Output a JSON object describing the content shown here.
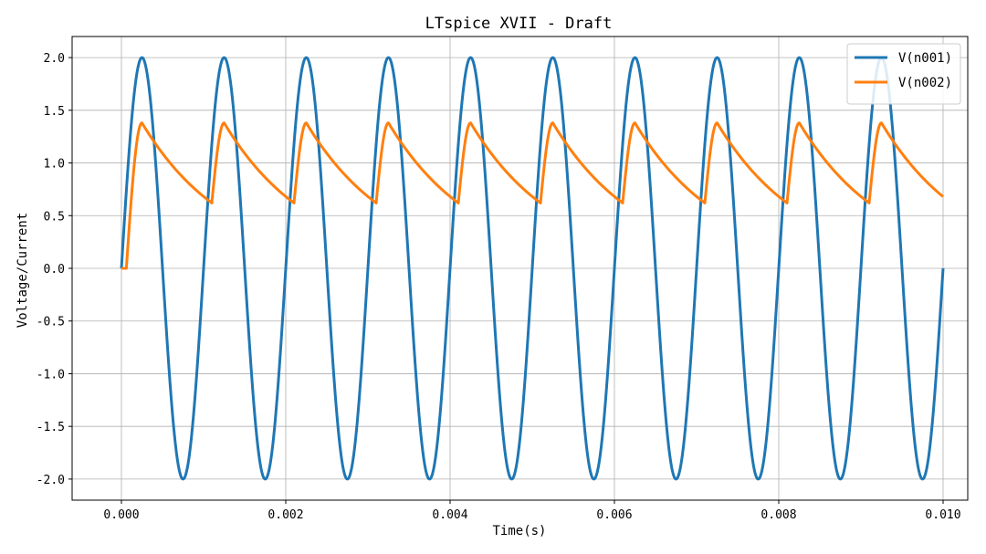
{
  "chart_data": {
    "type": "line",
    "title": "LTspice XVII - Draft",
    "xlabel": "Time(s)",
    "ylabel": "Voltage/Current",
    "xlim": [
      -0.0006,
      0.0103
    ],
    "ylim": [
      -2.2,
      2.2
    ],
    "xticks": [
      0.0,
      0.002,
      0.004,
      0.006,
      0.008,
      0.01
    ],
    "xtick_labels": [
      "0.000",
      "0.002",
      "0.004",
      "0.006",
      "0.008",
      "0.010"
    ],
    "yticks": [
      2.0,
      1.5,
      1.0,
      0.5,
      0.0,
      -0.5,
      -1.0,
      -1.5,
      -2.0
    ],
    "ytick_labels": [
      "2.0",
      "1.5",
      "1.0",
      "0.5",
      "0.0",
      "-0.5",
      "-1.0",
      "-1.5",
      "-2.0"
    ],
    "grid": true,
    "legend_position": "top-right",
    "series": [
      {
        "name": "V(n001)",
        "color": "#1f77b4",
        "x": [
          0.0,
          0.00025,
          0.0005,
          0.00075,
          0.001,
          0.00125,
          0.0015,
          0.00175,
          0.002,
          0.00225,
          0.0025,
          0.00275,
          0.003,
          0.00325,
          0.0035,
          0.00375,
          0.004,
          0.00425,
          0.0045,
          0.00475,
          0.005,
          0.00525,
          0.0055,
          0.00575,
          0.006,
          0.00625,
          0.0065,
          0.00675,
          0.007,
          0.00725,
          0.0075,
          0.00775,
          0.008,
          0.00825,
          0.0085,
          0.00875,
          0.009,
          0.00925,
          0.0095,
          0.00975,
          0.01
        ],
        "y": [
          0.0,
          2.0,
          0.0,
          -2.0,
          0.0,
          2.0,
          0.0,
          -2.0,
          0.0,
          2.0,
          0.0,
          -2.0,
          0.0,
          2.0,
          0.0,
          -2.0,
          0.0,
          2.0,
          0.0,
          -2.0,
          0.0,
          2.0,
          0.0,
          -2.0,
          0.0,
          2.0,
          0.0,
          -2.0,
          0.0,
          2.0,
          0.0,
          -2.0,
          0.0,
          2.0,
          0.0,
          -2.0,
          0.0,
          2.0,
          0.0,
          -2.0,
          0.0
        ]
      },
      {
        "name": "V(n002)",
        "color": "#ff7f0e",
        "x": [
          0.0,
          6e-05,
          0.00025,
          0.0011,
          0.00125,
          0.0021,
          0.00225,
          0.0031,
          0.00325,
          0.0041,
          0.00425,
          0.0051,
          0.00525,
          0.0061,
          0.00625,
          0.0071,
          0.00725,
          0.0081,
          0.00825,
          0.0091,
          0.00925,
          0.01
        ],
        "y": [
          0.0,
          0.0,
          1.38,
          0.62,
          1.38,
          0.62,
          1.38,
          0.62,
          1.38,
          0.62,
          1.38,
          0.62,
          1.38,
          0.62,
          1.38,
          0.62,
          1.38,
          0.62,
          1.38,
          0.62,
          1.38,
          0.68
        ]
      }
    ]
  }
}
